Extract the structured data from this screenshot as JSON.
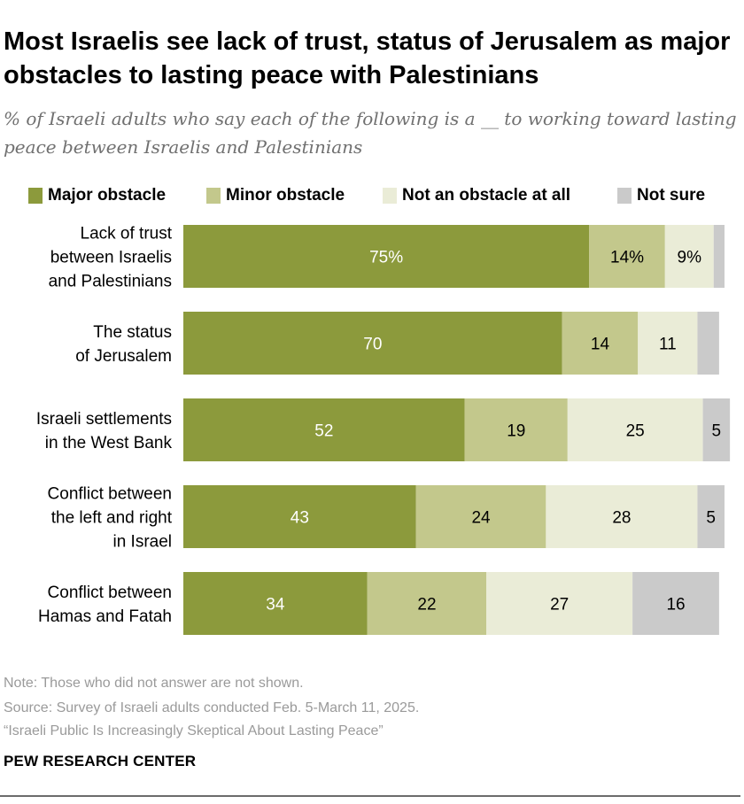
{
  "title": "Most Israelis see lack of trust, status of Jerusalem as major obstacles to lasting peace with Palestinians",
  "subtitle": "% of Israeli adults who say each of the following is a __ to working toward lasting peace between Israelis and Palestinians",
  "colors": {
    "major": "#8c9a3c",
    "minor": "#c3c88c",
    "not_obstacle": "#eaecd7",
    "not_sure": "#cacaca"
  },
  "chart_data": {
    "type": "bar",
    "orientation": "horizontal-stacked",
    "title": "Most Israelis see lack of trust, status of Jerusalem as major obstacles to lasting peace with Palestinians",
    "xlabel": "",
    "ylabel": "",
    "xlim": [
      0,
      100
    ],
    "legend_position": "top",
    "categories": [
      [
        "Lack of trust",
        "between Israelis",
        "and Palestinians"
      ],
      [
        "The status",
        "of Jerusalem"
      ],
      [
        "Israeli settlements",
        "in the West Bank"
      ],
      [
        "Conflict between",
        "the left and right",
        "in Israel"
      ],
      [
        "Conflict between",
        "Hamas and Fatah"
      ]
    ],
    "series": [
      {
        "name": "Major obstacle",
        "color": "#8c9a3c",
        "text_color": "#ffffff",
        "values": [
          75,
          70,
          52,
          43,
          34
        ],
        "labels": [
          "75%",
          "70",
          "52",
          "43",
          "34"
        ]
      },
      {
        "name": "Minor obstacle",
        "color": "#c3c88c",
        "text_color": "#000000",
        "values": [
          14,
          14,
          19,
          24,
          22
        ],
        "labels": [
          "14%",
          "14",
          "19",
          "24",
          "22"
        ]
      },
      {
        "name": "Not an obstacle at all",
        "color": "#eaecd7",
        "text_color": "#000000",
        "values": [
          9,
          11,
          25,
          28,
          27
        ],
        "labels": [
          "9%",
          "11",
          "25",
          "28",
          "27"
        ]
      },
      {
        "name": "Not sure",
        "color": "#cacaca",
        "text_color": "#000000",
        "values": [
          2,
          4,
          5,
          5,
          16
        ],
        "labels": [
          "",
          "",
          "5",
          "5",
          "16"
        ]
      }
    ]
  },
  "notes": {
    "note": "Note: Those who did not answer are not shown.",
    "source": "Source: Survey of Israeli adults conducted Feb. 5-March 11, 2025.",
    "report": "“Israeli Public Is Increasingly Skeptical About Lasting Peace”"
  },
  "brand": "PEW RESEARCH CENTER"
}
